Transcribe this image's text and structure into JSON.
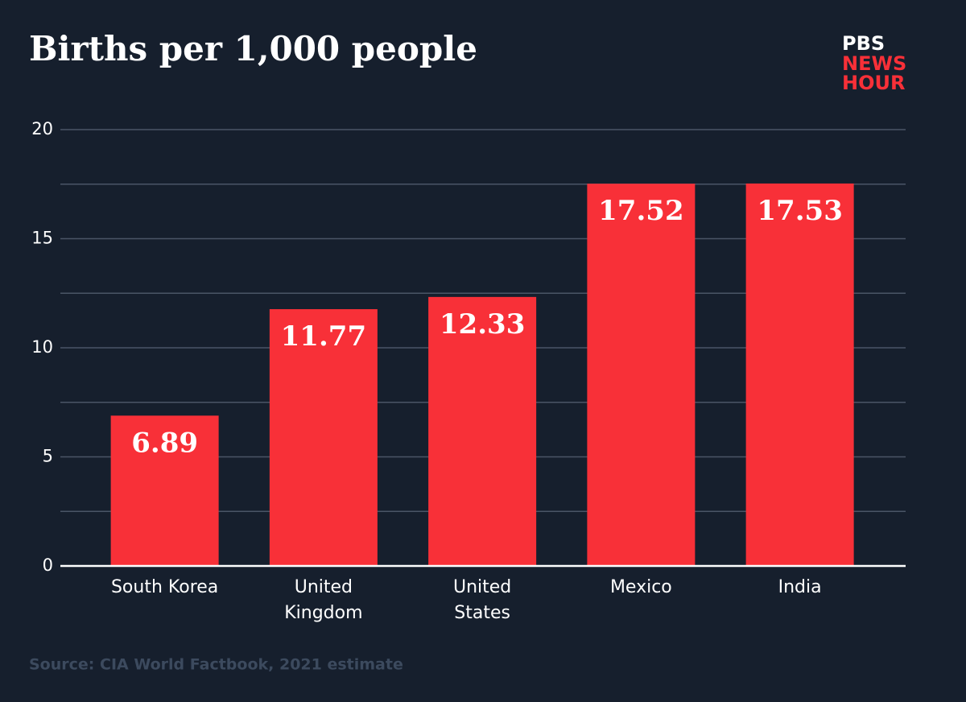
{
  "chart_data": {
    "type": "bar",
    "title": "Births per 1,000 people",
    "logo": {
      "top": "PBS",
      "lines": [
        "NEWS",
        "HOUR"
      ]
    },
    "source": "Source: CIA World Factbook, 2021 estimate",
    "categories": [
      [
        "South Korea"
      ],
      [
        "United",
        "Kingdom"
      ],
      [
        "United",
        "States"
      ],
      [
        "Mexico"
      ],
      [
        "India"
      ]
    ],
    "values": [
      6.89,
      11.77,
      12.33,
      17.52,
      17.53
    ],
    "color": "#f83038",
    "ylim": [
      0,
      20
    ],
    "yticks": [
      0,
      5,
      10,
      15,
      20
    ],
    "yminor_ticks": [
      2.5,
      7.5,
      12.5,
      17.5
    ],
    "grid": true
  }
}
